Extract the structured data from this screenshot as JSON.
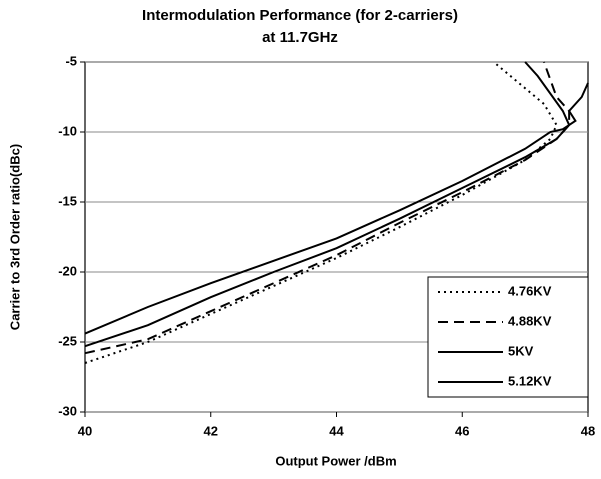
{
  "chart_data": {
    "type": "line",
    "title": "Intermodulation Performance (for 2-carriers)",
    "subtitle": "at 11.7GHz",
    "x_label": "Output Power /dBm",
    "y_label": "Carrier to 3rd Order ratio(dBc)",
    "xlim": [
      40,
      48
    ],
    "xticks": [
      40,
      42,
      44,
      46,
      48
    ],
    "ylim": [
      -30,
      -5
    ],
    "yticks": [
      -30,
      -25,
      -20,
      -15,
      -10,
      -5
    ],
    "grid": true,
    "legend": "lower right",
    "series": [
      {
        "name": "4.76KV",
        "color": "#000000",
        "dash": "dotted",
        "x": [
          40,
          41,
          42,
          43,
          44,
          45,
          46,
          47,
          47.4,
          47.5,
          47.3,
          46.9,
          46.5
        ],
        "values": [
          -26.5,
          -25,
          -23,
          -21,
          -19,
          -16.8,
          -14.5,
          -12,
          -10.5,
          -9.5,
          -8,
          -6.5,
          -5
        ]
      },
      {
        "name": "4.88KV",
        "color": "#000000",
        "dash": "dashed",
        "x": [
          40,
          41,
          42,
          43,
          44,
          45,
          46,
          47,
          47.5,
          47.7,
          47.7,
          47.5,
          47.3
        ],
        "values": [
          -25.8,
          -24.8,
          -22.8,
          -20.8,
          -18.8,
          -16.5,
          -14.3,
          -12,
          -10.5,
          -9.5,
          -8.5,
          -7.5,
          -5
        ]
      },
      {
        "name": "5KV",
        "color": "#000000",
        "dash": "solid",
        "x": [
          40,
          41,
          42,
          43,
          44,
          45,
          46,
          47,
          47.5,
          47.7,
          47.6,
          47.2,
          47
        ],
        "values": [
          -25.3,
          -23.8,
          -21.8,
          -20,
          -18.3,
          -16.2,
          -14,
          -11.8,
          -10.5,
          -9.5,
          -8.5,
          -6,
          -5
        ]
      },
      {
        "name": "5.12KV",
        "color": "#000000",
        "dash": "solid",
        "x": [
          40,
          41,
          42,
          43,
          44,
          45,
          46,
          47,
          47.4,
          47.6,
          47.8,
          47.7,
          47.9,
          48
        ],
        "values": [
          -24.4,
          -22.5,
          -20.8,
          -19.2,
          -17.6,
          -15.6,
          -13.5,
          -11.2,
          -10,
          -9.8,
          -9.2,
          -8.5,
          -7.5,
          -6.5
        ]
      }
    ]
  }
}
